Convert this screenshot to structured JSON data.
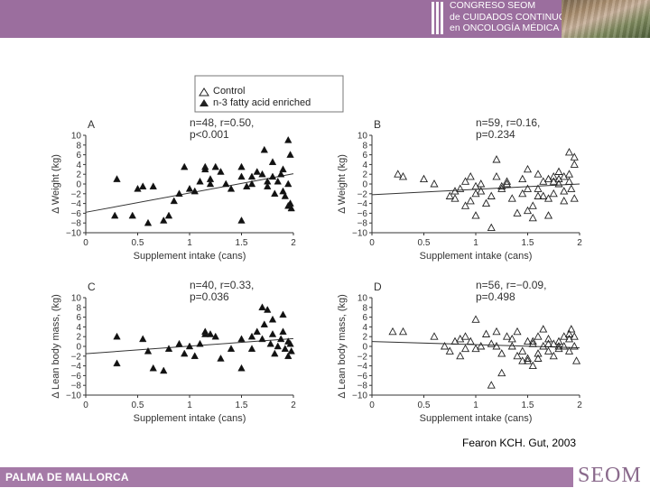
{
  "header": {
    "congress_lines": [
      "CONGRESO SEOM",
      "de CUIDADOS CONTINUOS",
      "en ONCOLOGÍA MÉDICA"
    ],
    "photo_icon": "landscape-photo"
  },
  "legend": {
    "control_label": "Control",
    "enriched_label": "n-3 fatty acid enriched"
  },
  "citation": "Fearon KCH. Gut, 2003",
  "footer": {
    "location": "PALMA DE MALLORCA",
    "logo": "SEOM"
  },
  "colors": {
    "header": "#9b6e9e",
    "footer": "#a57aa7",
    "logo": "#8a6a8c"
  },
  "chart_data": [
    {
      "type": "scatter",
      "panel": "A",
      "marker": "filled-triangle",
      "stats_lines": [
        "n=48, r=0.50,",
        "p<0.001"
      ],
      "xlabel": "Supplement intake (cans)",
      "ylabel": "Δ Weight (kg)",
      "xlim": [
        0,
        2
      ],
      "ylim": [
        -10,
        10
      ],
      "xticks": [
        "0",
        "0.5",
        "1",
        "1.5",
        "2"
      ],
      "yticks": [
        "10",
        "8",
        "6",
        "4",
        "2",
        "0",
        "−2",
        "−4",
        "−6",
        "−8",
        "−10"
      ],
      "trend": [
        [
          0,
          -5.8
        ],
        [
          2,
          2.1
        ]
      ],
      "x": [
        0.3,
        0.28,
        0.45,
        0.5,
        0.55,
        0.6,
        0.65,
        0.75,
        0.8,
        0.9,
        0.95,
        1.0,
        1.05,
        1.1,
        1.15,
        1.15,
        1.2,
        1.2,
        1.25,
        1.3,
        1.35,
        1.4,
        1.5,
        1.5,
        1.55,
        1.6,
        1.6,
        1.65,
        1.7,
        1.72,
        1.75,
        1.75,
        1.8,
        1.8,
        1.82,
        1.85,
        1.88,
        1.9,
        1.9,
        1.92,
        1.95,
        1.95,
        1.95,
        1.97,
        1.97,
        1.98,
        1.5,
        0.85
      ],
      "y": [
        1.0,
        -6.5,
        -6.5,
        -1.0,
        -0.5,
        -8.0,
        -0.5,
        -7.5,
        -6.5,
        -2.0,
        3.5,
        -1.0,
        -1.5,
        0.5,
        3.5,
        3.0,
        1.0,
        0.0,
        3.5,
        2.5,
        0.0,
        -1.0,
        1.5,
        -7.5,
        -0.5,
        0.0,
        1.5,
        2.5,
        2.0,
        7.0,
        -0.5,
        0.5,
        1.5,
        4.5,
        -2.0,
        0.5,
        2.0,
        3.0,
        -1.5,
        -2.5,
        0.0,
        -4.5,
        9.0,
        -4.0,
        6.0,
        -5.0,
        3.5,
        -3.5
      ]
    },
    {
      "type": "scatter",
      "panel": "B",
      "marker": "open-triangle",
      "stats_lines": [
        "n=59, r=0.16,",
        "p=0.234"
      ],
      "xlabel": "Supplement intake (cans)",
      "ylabel": "Δ Weight (kg)",
      "xlim": [
        0,
        2
      ],
      "ylim": [
        -10,
        10
      ],
      "xticks": [
        "0",
        "0.5",
        "1",
        "1.5",
        "2"
      ],
      "yticks": [
        "10",
        "8",
        "6",
        "4",
        "2",
        "0",
        "−2",
        "−4",
        "−6",
        "−8",
        "−10"
      ],
      "trend": [
        [
          0,
          -2.2
        ],
        [
          2,
          0.0
        ]
      ],
      "x": [
        0.25,
        0.3,
        0.5,
        0.6,
        0.75,
        0.8,
        0.85,
        0.9,
        0.95,
        1.0,
        1.0,
        1.05,
        1.05,
        1.1,
        1.15,
        1.2,
        1.25,
        1.25,
        1.3,
        1.35,
        1.4,
        1.45,
        1.5,
        1.5,
        1.55,
        1.55,
        1.6,
        1.6,
        1.65,
        1.65,
        1.7,
        1.7,
        1.75,
        1.75,
        1.8,
        1.8,
        1.8,
        1.85,
        1.85,
        1.9,
        1.9,
        1.9,
        1.92,
        1.95,
        1.95,
        1.95,
        0.9,
        1.0,
        1.2,
        1.5,
        1.3,
        1.6,
        1.7,
        0.95,
        1.85,
        1.45,
        1.15,
        0.8,
        1.75
      ],
      "y": [
        2.0,
        1.5,
        1.0,
        0.0,
        -2.5,
        -3.0,
        -1.0,
        0.5,
        1.5,
        -6.5,
        -2.0,
        0.0,
        -1.5,
        -4.0,
        -2.5,
        5.0,
        -0.5,
        -1.0,
        0.0,
        -3.0,
        -6.0,
        -2.0,
        -1.0,
        3.0,
        -4.5,
        -7.0,
        2.0,
        -1.0,
        -2.5,
        0.5,
        -3.0,
        -6.5,
        1.5,
        -2.0,
        0.0,
        2.5,
        1.0,
        1.5,
        -3.5,
        0.5,
        2.0,
        6.5,
        -1.0,
        4.0,
        5.5,
        -3.0,
        -4.5,
        -0.5,
        1.5,
        -5.5,
        0.5,
        -2.5,
        1.0,
        -3.5,
        -1.5,
        1.0,
        -9.0,
        -1.5,
        0.5
      ]
    },
    {
      "type": "scatter",
      "panel": "C",
      "marker": "filled-triangle",
      "stats_lines": [
        "n=40, r=0.33,",
        "p=0.036"
      ],
      "xlabel": "Supplement intake (cans)",
      "ylabel": "Δ Lean body mass, (kg)",
      "xlim": [
        0,
        2
      ],
      "ylim": [
        -10,
        10
      ],
      "xticks": [
        "0",
        "0.5",
        "1",
        "1.5",
        "2"
      ],
      "yticks": [
        "10",
        "8",
        "6",
        "4",
        "2",
        "0",
        "−2",
        "−4",
        "−6",
        "−8",
        "−10"
      ],
      "trend": [
        [
          0,
          -1.5
        ],
        [
          2,
          1.6
        ]
      ],
      "x": [
        0.3,
        0.3,
        0.55,
        0.6,
        0.65,
        0.75,
        0.8,
        0.9,
        1.0,
        1.05,
        1.1,
        1.15,
        1.15,
        1.2,
        1.25,
        1.4,
        1.5,
        1.5,
        1.6,
        1.65,
        1.7,
        1.72,
        1.75,
        1.78,
        1.8,
        1.8,
        1.82,
        1.85,
        1.88,
        1.9,
        1.9,
        1.92,
        1.95,
        1.95,
        1.97,
        1.98,
        1.3,
        0.95,
        1.6,
        1.7
      ],
      "y": [
        2.0,
        -3.5,
        1.5,
        -1.0,
        -4.5,
        -5.0,
        -0.5,
        0.5,
        0.0,
        -2.0,
        0.5,
        2.5,
        3.0,
        2.5,
        2.0,
        -0.5,
        1.5,
        -4.5,
        -0.5,
        3.0,
        1.5,
        4.5,
        7.5,
        0.5,
        5.5,
        2.5,
        -1.5,
        0.0,
        1.5,
        3.0,
        6.5,
        -0.5,
        1.0,
        -2.0,
        0.5,
        -1.0,
        -2.5,
        -1.5,
        2.0,
        8.0
      ]
    },
    {
      "type": "scatter",
      "panel": "D",
      "marker": "open-triangle",
      "stats_lines": [
        "n=56, r=−0.09,",
        "p=0.498"
      ],
      "xlabel": "Supplement intake (cans)",
      "ylabel": "Δ Lean body mass, (kg)",
      "xlim": [
        0,
        2
      ],
      "ylim": [
        -10,
        10
      ],
      "xticks": [
        "0",
        "0.5",
        "1",
        "1.5",
        "2"
      ],
      "yticks": [
        "10",
        "8",
        "6",
        "4",
        "2",
        "0",
        "−2",
        "−4",
        "−6",
        "−8",
        "−10"
      ],
      "trend": [
        [
          0,
          1.0
        ],
        [
          2,
          -0.3
        ]
      ],
      "x": [
        0.2,
        0.3,
        0.6,
        0.7,
        0.75,
        0.8,
        0.85,
        0.9,
        0.9,
        0.95,
        1.0,
        1.05,
        1.1,
        1.15,
        1.2,
        1.25,
        1.3,
        1.35,
        1.4,
        1.4,
        1.45,
        1.45,
        1.5,
        1.5,
        1.55,
        1.55,
        1.6,
        1.6,
        1.65,
        1.65,
        1.7,
        1.7,
        1.75,
        1.75,
        1.8,
        1.8,
        1.85,
        1.85,
        1.9,
        1.9,
        1.92,
        1.95,
        1.95,
        1.97,
        1.0,
        1.2,
        1.6,
        1.35,
        1.8,
        0.85,
        1.5,
        1.7,
        1.9,
        1.25,
        1.15,
        1.55
      ],
      "y": [
        3.0,
        3.0,
        2.0,
        0.0,
        -1.0,
        1.0,
        -2.0,
        2.0,
        -0.5,
        1.0,
        5.5,
        0.0,
        2.5,
        -8.0,
        0.0,
        -5.5,
        2.0,
        0.0,
        -2.0,
        3.0,
        -1.0,
        -3.0,
        1.0,
        -2.5,
        -4.0,
        0.5,
        2.0,
        -1.5,
        3.5,
        0.0,
        -1.0,
        1.5,
        -2.0,
        0.5,
        1.0,
        -0.5,
        2.0,
        0.0,
        -1.0,
        1.5,
        3.5,
        0.0,
        2.0,
        -3.0,
        -0.5,
        3.0,
        -2.5,
        1.5,
        0.0,
        1.5,
        -3.0,
        0.5,
        2.5,
        -1.5,
        0.5,
        1.0
      ]
    }
  ]
}
